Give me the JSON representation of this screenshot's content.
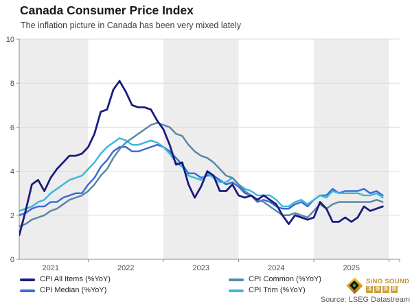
{
  "header": {
    "title": "Canada Consumer Price Index",
    "subtitle": "The inflation picture in Canada has been very mixed lately"
  },
  "source": "Source: LSEG Datastream",
  "logo": {
    "brand": "SiNO SOUND",
    "brand_cjk": "漢聲集團"
  },
  "chart_data": {
    "type": "line",
    "title": "Canada Consumer Price Index",
    "subtitle": "The inflation picture in Canada has been very mixed lately",
    "x_frequency": "monthly",
    "x_start": "2021-01",
    "x_end": "2025-12",
    "x_tick_labels": [
      "2021",
      "2022",
      "2023",
      "2024",
      "2025"
    ],
    "ylim": [
      0,
      10
    ],
    "y_ticks": [
      0,
      2,
      4,
      6,
      8,
      10
    ],
    "grid": "horizontal-light",
    "plot_bands": "alternating yearly shading",
    "band_color": "#ededed",
    "axis_color": "#8c8c8c",
    "gridline_color": "#d9d9d9",
    "legend_position": "bottom",
    "series": [
      {
        "name": "CPI All Items (%YoY)",
        "color": "#1b1b7e",
        "values": [
          1.0,
          1.1,
          2.2,
          3.4,
          3.6,
          3.1,
          3.7,
          4.1,
          4.4,
          4.7,
          4.7,
          4.8,
          5.1,
          5.7,
          6.7,
          6.8,
          7.7,
          8.1,
          7.6,
          7.0,
          6.9,
          6.9,
          6.8,
          6.3,
          5.9,
          5.2,
          4.3,
          4.4,
          3.4,
          2.8,
          3.3,
          4.0,
          3.8,
          3.1,
          3.1,
          3.4,
          2.9,
          2.8,
          2.9,
          2.7,
          2.9,
          2.7,
          2.5,
          2.0,
          1.6,
          2.0,
          1.9,
          1.8,
          1.9,
          2.6,
          2.3,
          1.7,
          1.7,
          1.9,
          1.7,
          1.9,
          2.4,
          2.2,
          2.3,
          2.4
        ]
      },
      {
        "name": "CPI Median (%YoY)",
        "color": "#3b6cd4",
        "values": [
          2.0,
          2.0,
          2.1,
          2.3,
          2.4,
          2.4,
          2.6,
          2.6,
          2.8,
          2.9,
          3.0,
          3.0,
          3.4,
          3.7,
          4.2,
          4.5,
          4.9,
          5.1,
          5.1,
          4.9,
          4.9,
          5.0,
          5.1,
          5.2,
          5.1,
          4.9,
          4.6,
          4.3,
          3.9,
          3.9,
          3.7,
          3.8,
          3.8,
          3.6,
          3.4,
          3.5,
          3.3,
          3.0,
          2.9,
          2.6,
          2.7,
          2.6,
          2.4,
          2.3,
          2.3,
          2.5,
          2.6,
          2.4,
          2.7,
          2.9,
          2.9,
          3.2,
          3.0,
          3.1,
          3.1,
          3.1,
          3.2,
          3.0,
          3.1,
          2.9
        ]
      },
      {
        "name": "CPI Common (%YoY)",
        "color": "#5b87a6",
        "values": [
          1.5,
          1.5,
          1.6,
          1.8,
          1.9,
          2.0,
          2.2,
          2.3,
          2.5,
          2.7,
          2.8,
          2.9,
          3.1,
          3.4,
          3.8,
          4.1,
          4.6,
          5.0,
          5.3,
          5.5,
          5.7,
          5.9,
          6.1,
          6.2,
          6.1,
          6.0,
          5.7,
          5.6,
          5.2,
          4.9,
          4.7,
          4.6,
          4.4,
          4.1,
          3.8,
          3.7,
          3.4,
          3.1,
          2.9,
          2.7,
          2.6,
          2.4,
          2.2,
          2.0,
          2.0,
          2.1,
          2.0,
          1.9,
          2.2,
          2.5,
          2.3,
          2.5,
          2.6,
          2.6,
          2.6,
          2.6,
          2.6,
          2.6,
          2.7,
          2.6
        ]
      },
      {
        "name": "CPI Trim (%YoY)",
        "color": "#3cb8da",
        "values": [
          2.2,
          2.2,
          2.3,
          2.4,
          2.6,
          2.7,
          3.0,
          3.2,
          3.4,
          3.6,
          3.7,
          3.8,
          4.1,
          4.4,
          4.8,
          5.1,
          5.3,
          5.5,
          5.4,
          5.2,
          5.2,
          5.3,
          5.4,
          5.3,
          5.1,
          4.8,
          4.4,
          4.2,
          3.8,
          3.7,
          3.6,
          3.9,
          3.7,
          3.5,
          3.5,
          3.7,
          3.4,
          3.2,
          3.1,
          2.9,
          2.9,
          2.9,
          2.7,
          2.4,
          2.4,
          2.6,
          2.7,
          2.5,
          2.7,
          2.9,
          2.8,
          3.1,
          3.0,
          3.0,
          3.0,
          3.0,
          2.9,
          2.9,
          3.0,
          2.8
        ]
      }
    ]
  }
}
